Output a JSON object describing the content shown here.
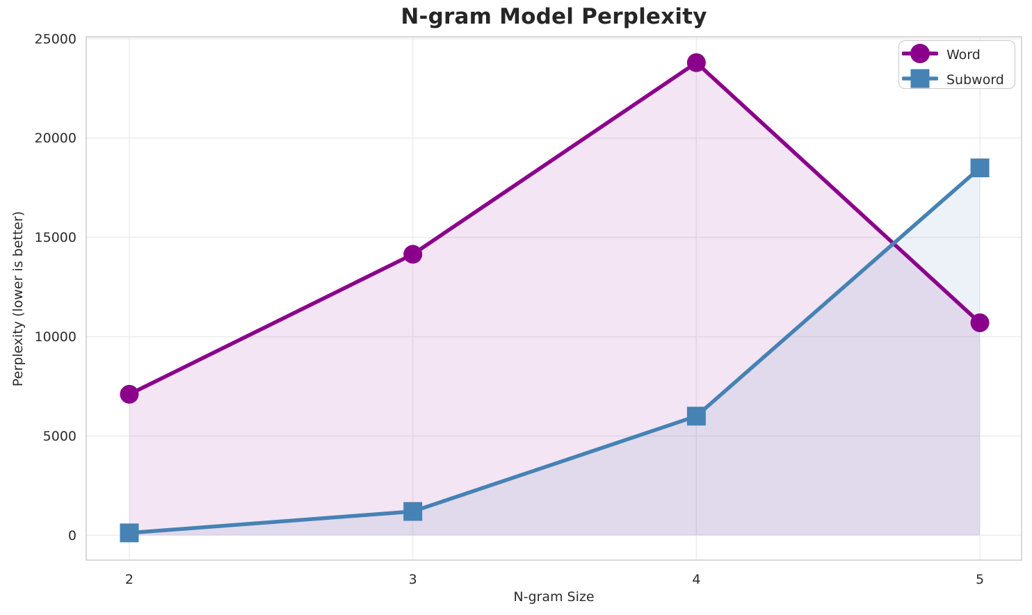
{
  "chart_data": {
    "type": "line",
    "title": "N-gram Model Perplexity",
    "xlabel": "N-gram Size",
    "ylabel": "Perplexity (lower is better)",
    "x": [
      2,
      3,
      4,
      5
    ],
    "series": [
      {
        "name": "Word",
        "marker": "circle",
        "color": "#8B008B",
        "fill_opacity": 0.1,
        "values": [
          7100,
          14150,
          23800,
          10700
        ]
      },
      {
        "name": "Subword",
        "marker": "square",
        "color": "#4682B4",
        "fill_opacity": 0.1,
        "values": [
          120,
          1200,
          6000,
          18500
        ]
      }
    ],
    "xticks": [
      2,
      3,
      4,
      5
    ],
    "yticks": [
      0,
      5000,
      10000,
      15000,
      20000,
      25000
    ],
    "xlim": [
      1.848,
      5.147
    ],
    "ylim": [
      -1250,
      25100
    ],
    "grid": true,
    "fill_baseline": 0,
    "line_width": 5.5,
    "legend_position": "upper right"
  }
}
